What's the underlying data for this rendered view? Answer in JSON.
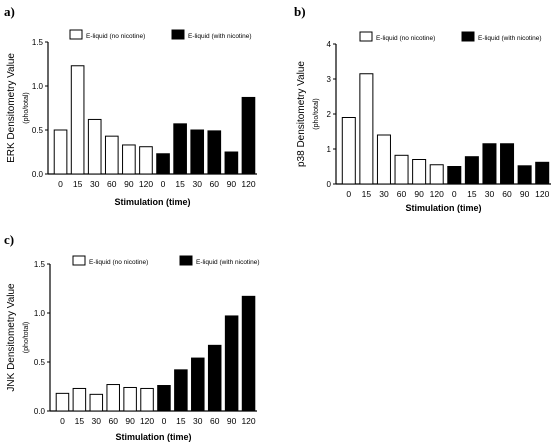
{
  "chart_data": [
    {
      "panel_label": "a)",
      "type": "bar",
      "ylabel": "ERK Densitometry Value",
      "ylabel_sub": "(pho/total)",
      "xlabel": "Stimulation (time)",
      "ylim": [
        0,
        1.5
      ],
      "yticks": [
        "0.0",
        "0.5",
        "1.0",
        "1.5"
      ],
      "legend_position": "top",
      "series": [
        {
          "name": "E-liquid (no nicotine)",
          "color": "#ffffff",
          "categories": [
            "0",
            "15",
            "30",
            "60",
            "90",
            "120"
          ],
          "values": [
            0.5,
            1.23,
            0.62,
            0.43,
            0.33,
            0.31
          ]
        },
        {
          "name": "E-liquid (with nicotine)",
          "color": "#000000",
          "categories": [
            "0",
            "15",
            "30",
            "60",
            "90",
            "120"
          ],
          "values": [
            0.23,
            0.57,
            0.5,
            0.49,
            0.25,
            0.87
          ]
        }
      ]
    },
    {
      "panel_label": "b)",
      "type": "bar",
      "ylabel": "p38 Densitometry Value",
      "ylabel_sub": "(pho/total)",
      "xlabel": "Stimulation (time)",
      "ylim": [
        0,
        4
      ],
      "yticks": [
        "0",
        "1",
        "2",
        "3",
        "4"
      ],
      "legend_position": "top",
      "series": [
        {
          "name": "E-liquid (no nicotine)",
          "color": "#ffffff",
          "categories": [
            "0",
            "15",
            "30",
            "60",
            "90",
            "120"
          ],
          "values": [
            1.9,
            3.15,
            1.4,
            0.82,
            0.7,
            0.55
          ]
        },
        {
          "name": "E-liquid (with nicotine)",
          "color": "#000000",
          "categories": [
            "0",
            "15",
            "30",
            "60",
            "90",
            "120"
          ],
          "values": [
            0.5,
            0.78,
            1.15,
            1.15,
            0.52,
            0.62
          ]
        }
      ]
    },
    {
      "panel_label": "c)",
      "type": "bar",
      "ylabel": "JNK Densitometry Value",
      "ylabel_sub": "(pho/total)",
      "xlabel": "Stimulation (time)",
      "ylim": [
        0,
        1.5
      ],
      "yticks": [
        "0.0",
        "0.5",
        "1.0",
        "1.5"
      ],
      "legend_position": "top",
      "series": [
        {
          "name": "E-liquid (no nicotine)",
          "color": "#ffffff",
          "categories": [
            "0",
            "15",
            "30",
            "60",
            "90",
            "120"
          ],
          "values": [
            0.18,
            0.23,
            0.17,
            0.27,
            0.24,
            0.23
          ]
        },
        {
          "name": "E-liquid (with nicotine)",
          "color": "#000000",
          "categories": [
            "0",
            "15",
            "30",
            "60",
            "90",
            "120"
          ],
          "values": [
            0.26,
            0.42,
            0.54,
            0.67,
            0.97,
            1.17
          ]
        }
      ]
    }
  ]
}
